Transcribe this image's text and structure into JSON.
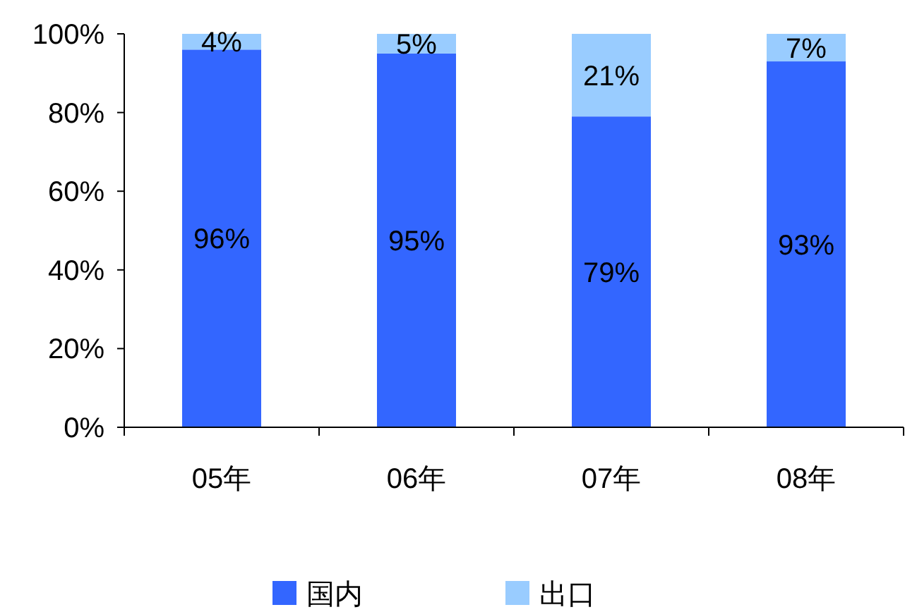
{
  "chart_data": {
    "type": "bar",
    "stacked": true,
    "categories": [
      "05年",
      "06年",
      "07年",
      "08年"
    ],
    "series": [
      {
        "name": "国内",
        "color": "#3366ff",
        "values": [
          96,
          95,
          79,
          93
        ],
        "value_labels": [
          "96%",
          "95%",
          "79%",
          "93%"
        ]
      },
      {
        "name": "出口",
        "color": "#99ccff",
        "values": [
          4,
          5,
          21,
          7
        ],
        "value_labels": [
          "4%",
          "5%",
          "21%",
          "7%"
        ]
      }
    ],
    "ylim": [
      0,
      100
    ],
    "yticks": [
      {
        "value": 0,
        "label": "0%"
      },
      {
        "value": 20,
        "label": "20%"
      },
      {
        "value": 40,
        "label": "40%"
      },
      {
        "value": 60,
        "label": "60%"
      },
      {
        "value": 80,
        "label": "80%"
      },
      {
        "value": 100,
        "label": "100%"
      }
    ],
    "legend": "bottom",
    "grid": false
  }
}
